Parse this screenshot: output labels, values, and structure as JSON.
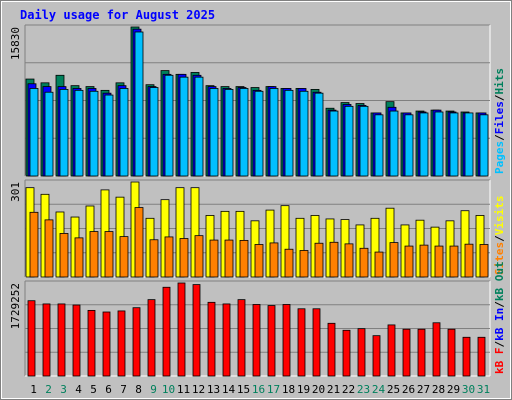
{
  "title": "Daily usage for August 2025",
  "colors": {
    "background": "#c0c0c0",
    "plot": "#c0c0c0",
    "title": "#0000ff",
    "hits": "#00805c",
    "files": "#0000ff",
    "pages": "#00c0ff",
    "visits": "#ffff00",
    "sites": "#ff8000",
    "kb_in": "#0000ff",
    "kb_out": "#00805c",
    "kb_f": "#ff0000",
    "weekday": "#000000",
    "weekend": "#00805c"
  },
  "chart_data": [
    {
      "type": "bar",
      "name": "hits-files-pages",
      "y_max_label": "15830",
      "ylim": [
        0,
        15830
      ],
      "legend": [
        {
          "key": "pages",
          "text": "Pages"
        },
        {
          "key": "files",
          "text": "Files"
        },
        {
          "key": "hits",
          "text": "Hits"
        }
      ],
      "categories": [
        "1",
        "2",
        "3",
        "4",
        "5",
        "6",
        "7",
        "8",
        "9",
        "10",
        "11",
        "12",
        "13",
        "14",
        "15",
        "16",
        "17",
        "18",
        "19",
        "20",
        "21",
        "22",
        "23",
        "24",
        "25",
        "26",
        "27",
        "28",
        "29",
        "30",
        "31"
      ],
      "series": [
        {
          "name": "Hits",
          "values": [
            10300,
            9900,
            10700,
            9600,
            9500,
            9100,
            9900,
            15830,
            9700,
            11200,
            10800,
            11000,
            9600,
            9500,
            9500,
            9400,
            9500,
            9300,
            9300,
            9200,
            7200,
            7800,
            7700,
            6700,
            7900,
            6700,
            6900,
            7000,
            6900,
            6800,
            6700
          ]
        },
        {
          "name": "Files",
          "values": [
            9800,
            9500,
            9500,
            9300,
            9300,
            8800,
            9600,
            15600,
            9500,
            10800,
            10800,
            10700,
            9500,
            9300,
            9400,
            9100,
            9500,
            9300,
            9300,
            8900,
            7000,
            7600,
            7500,
            6700,
            7300,
            6700,
            6800,
            7000,
            6800,
            6700,
            6700
          ]
        },
        {
          "name": "Pages",
          "values": [
            9300,
            8900,
            9200,
            9100,
            9000,
            8600,
            9300,
            15300,
            9400,
            10700,
            10500,
            10500,
            9300,
            9200,
            9300,
            9000,
            9300,
            9100,
            9000,
            8800,
            6900,
            7400,
            7400,
            6500,
            6900,
            6500,
            6700,
            6800,
            6700,
            6700,
            6500
          ]
        }
      ]
    },
    {
      "type": "bar",
      "name": "visits-sites",
      "y_max_label": "301",
      "ylim": [
        0,
        301
      ],
      "legend": [
        {
          "key": "sites",
          "text": "Sites"
        },
        {
          "key": "visits",
          "text": "Visits"
        }
      ],
      "categories": [
        "1",
        "2",
        "3",
        "4",
        "5",
        "6",
        "7",
        "8",
        "9",
        "10",
        "11",
        "12",
        "13",
        "14",
        "15",
        "16",
        "17",
        "18",
        "19",
        "20",
        "21",
        "22",
        "23",
        "24",
        "25",
        "26",
        "27",
        "28",
        "29",
        "30",
        "31"
      ],
      "series": [
        {
          "name": "Visits",
          "values": [
            283,
            262,
            206,
            190,
            225,
            276,
            253,
            301,
            186,
            245,
            283,
            283,
            195,
            208,
            208,
            178,
            212,
            226,
            186,
            195,
            184,
            182,
            165,
            186,
            218,
            165,
            180,
            158,
            178,
            210,
            195
          ]
        },
        {
          "name": "Sites",
          "values": [
            205,
            181,
            138,
            124,
            144,
            144,
            128,
            220,
            118,
            127,
            122,
            131,
            117,
            117,
            116,
            103,
            108,
            88,
            84,
            107,
            110,
            105,
            91,
            79,
            109,
            98,
            101,
            98,
            98,
            104,
            103
          ]
        }
      ]
    },
    {
      "type": "bar",
      "name": "kbytes",
      "y_max_label": "1729252",
      "ylim": [
        0,
        1729252
      ],
      "legend": [
        {
          "key": "kb_f",
          "text": "kB F"
        },
        {
          "key": "kb_in",
          "text": "kB In"
        },
        {
          "key": "kb_out",
          "text": "kB Out"
        }
      ],
      "categories": [
        "1",
        "2",
        "3",
        "4",
        "5",
        "6",
        "7",
        "8",
        "9",
        "10",
        "11",
        "12",
        "13",
        "14",
        "15",
        "16",
        "17",
        "18",
        "19",
        "20",
        "21",
        "22",
        "23",
        "24",
        "25",
        "26",
        "27",
        "28",
        "29",
        "30",
        "31"
      ],
      "series": [
        {
          "name": "kB F",
          "values": [
            1400000,
            1340000,
            1340000,
            1320000,
            1220000,
            1190000,
            1210000,
            1270000,
            1420000,
            1650000,
            1729252,
            1700000,
            1370000,
            1340000,
            1420000,
            1330000,
            1310000,
            1330000,
            1250000,
            1250000,
            980000,
            850000,
            880000,
            750000,
            950000,
            870000,
            870000,
            990000,
            870000,
            720000,
            720000
          ]
        }
      ]
    }
  ],
  "x_labels": [
    {
      "text": "1",
      "weekend": false
    },
    {
      "text": "2",
      "weekend": true
    },
    {
      "text": "3",
      "weekend": true
    },
    {
      "text": "4",
      "weekend": false
    },
    {
      "text": "5",
      "weekend": false
    },
    {
      "text": "6",
      "weekend": false
    },
    {
      "text": "7",
      "weekend": false
    },
    {
      "text": "8",
      "weekend": false
    },
    {
      "text": "9",
      "weekend": true
    },
    {
      "text": "10",
      "weekend": true
    },
    {
      "text": "11",
      "weekend": false
    },
    {
      "text": "12",
      "weekend": false
    },
    {
      "text": "13",
      "weekend": false
    },
    {
      "text": "14",
      "weekend": false
    },
    {
      "text": "15",
      "weekend": false
    },
    {
      "text": "16",
      "weekend": true
    },
    {
      "text": "17",
      "weekend": true
    },
    {
      "text": "18",
      "weekend": false
    },
    {
      "text": "19",
      "weekend": false
    },
    {
      "text": "20",
      "weekend": false
    },
    {
      "text": "21",
      "weekend": false
    },
    {
      "text": "22",
      "weekend": false
    },
    {
      "text": "23",
      "weekend": true
    },
    {
      "text": "24",
      "weekend": true
    },
    {
      "text": "25",
      "weekend": false
    },
    {
      "text": "26",
      "weekend": false
    },
    {
      "text": "27",
      "weekend": false
    },
    {
      "text": "28",
      "weekend": false
    },
    {
      "text": "29",
      "weekend": false
    },
    {
      "text": "30",
      "weekend": true
    },
    {
      "text": "31",
      "weekend": true
    }
  ]
}
